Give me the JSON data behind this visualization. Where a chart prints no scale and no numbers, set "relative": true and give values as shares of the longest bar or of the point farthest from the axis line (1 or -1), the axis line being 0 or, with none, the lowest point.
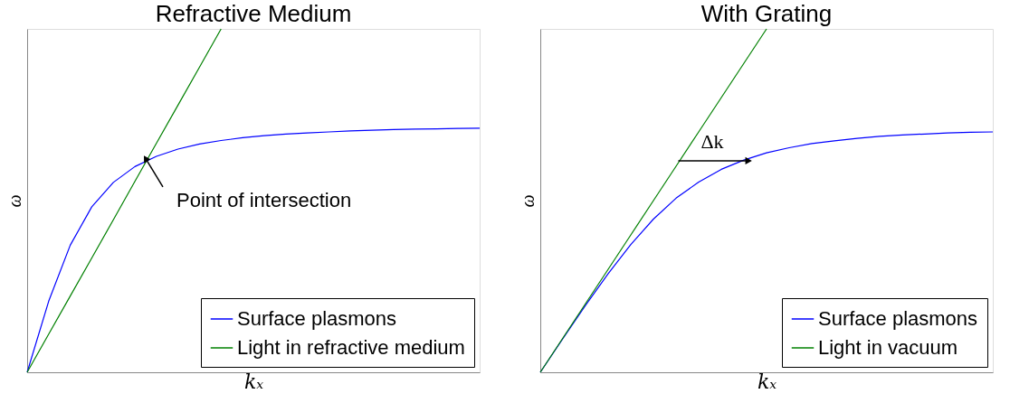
{
  "chart_data": [
    {
      "type": "line",
      "title": "Refractive Medium",
      "xlabel": "kₓ",
      "ylabel": "ω",
      "relative": true,
      "legend": "bottom right",
      "grid": false,
      "categories": [
        null,
        null,
        null,
        null,
        null,
        null,
        null,
        null,
        null,
        null,
        null,
        null,
        null,
        null,
        null,
        null,
        null,
        null,
        null,
        null,
        null,
        null
      ],
      "series": [
        {
          "name": "Surface plasmons",
          "color": "#0000ff",
          "values": [
            0,
            0.207,
            0.37,
            0.482,
            0.553,
            0.599,
            0.629,
            0.65,
            0.665,
            0.675,
            0.683,
            0.689,
            0.694,
            0.697,
            0.7,
            0.703,
            0.705,
            0.707,
            0.708,
            0.709,
            0.71,
            0.711
          ]
        },
        {
          "name": "Light in refractive medium",
          "color": "#008000",
          "values": [
            0,
            0.111,
            0.222,
            0.333,
            0.444,
            0.556,
            0.667,
            0.778,
            0.889,
            1,
            null,
            null,
            null,
            null,
            null,
            null,
            null,
            null,
            null,
            null,
            null,
            null
          ]
        }
      ],
      "annotations": [
        "Point of intersection"
      ]
    },
    {
      "type": "line",
      "title": "With Grating",
      "xlabel": "kₓ",
      "ylabel": "ω",
      "relative": true,
      "legend": "bottom right",
      "grid": false,
      "categories": [
        null,
        null,
        null,
        null,
        null,
        null,
        null,
        null,
        null,
        null,
        null,
        null,
        null,
        null,
        null,
        null,
        null,
        null,
        null,
        null,
        null
      ],
      "series": [
        {
          "name": "Surface plasmons",
          "color": "#0000ff",
          "values": [
            0,
            0.098,
            0.195,
            0.287,
            0.372,
            0.446,
            0.507,
            0.554,
            0.591,
            0.618,
            0.639,
            0.654,
            0.666,
            0.674,
            0.681,
            0.687,
            0.691,
            0.694,
            0.697,
            0.699,
            0.7
          ]
        },
        {
          "name": "Light in vacuum",
          "color": "#008000",
          "values": [
            0,
            0.1,
            0.2,
            0.3,
            0.4,
            0.5,
            0.6,
            0.7,
            0.8,
            0.9,
            1.0,
            null,
            null,
            null,
            null,
            null,
            null,
            null,
            null,
            null,
            null
          ]
        }
      ],
      "annotations": [
        "Δk"
      ]
    }
  ]
}
